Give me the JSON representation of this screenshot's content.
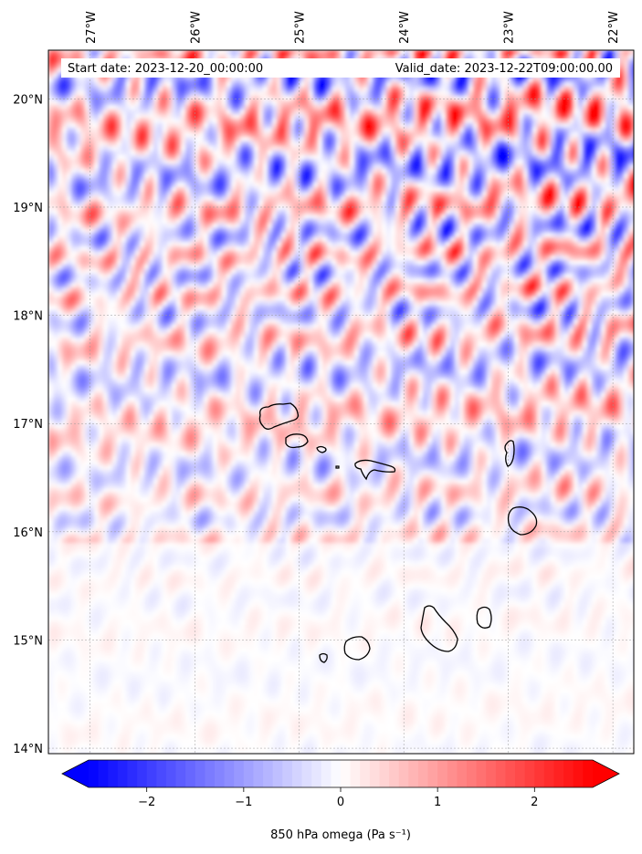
{
  "map": {
    "start_label": "Start date: 2023-12-20_00:00:00",
    "valid_label": "Valid_date: 2023-12-22T09:00:00.00",
    "variable": "850 hPa omega",
    "units_label": "850 hPa omega (Pa s⁻¹)",
    "lon_range": [
      -27.4,
      -21.8
    ],
    "lat_range": [
      13.95,
      20.45
    ],
    "lon_ticks": [
      "27°W",
      "26°W",
      "25°W",
      "24°W",
      "23°W",
      "22°W"
    ],
    "lon_tick_values": [
      -27,
      -26,
      -25,
      -24,
      -23,
      -22
    ],
    "lat_ticks": [
      "20°N",
      "19°N",
      "18°N",
      "17°N",
      "16°N",
      "15°N",
      "14°N"
    ],
    "lat_tick_values": [
      20,
      19,
      18,
      17,
      16,
      15,
      14
    ],
    "gridlines": true,
    "region": "Cape Verde Islands"
  },
  "colorbar": {
    "cmap": "bwr",
    "vmin": -2.6,
    "vmax": 2.6,
    "extend": "both",
    "ticks": [
      "−2",
      "−1",
      "0",
      "1",
      "2"
    ],
    "tick_values": [
      -2,
      -1,
      0,
      1,
      2
    ],
    "colors": {
      "negative": "#0000ff",
      "zero": "#ffffff",
      "positive": "#ff0000"
    }
  }
}
